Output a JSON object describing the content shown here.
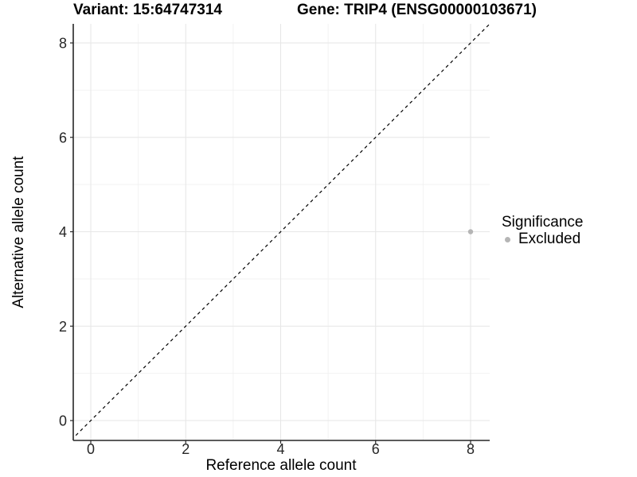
{
  "titles": {
    "variant": "Variant: 15:64747314",
    "gene": "Gene: TRIP4 (ENSG00000103671)"
  },
  "chart_data": {
    "type": "scatter",
    "title": "Variant: 15:64747314   Gene: TRIP4 (ENSG00000103671)",
    "xlabel": "Reference allele count",
    "ylabel": "Alternative allele count",
    "xlim": [
      -0.4,
      8.4
    ],
    "ylim": [
      -0.4,
      8.4
    ],
    "x_ticks": [
      0,
      2,
      4,
      6,
      8
    ],
    "y_ticks": [
      0,
      2,
      4,
      6,
      8
    ],
    "x_minor": [
      1,
      3,
      5,
      7
    ],
    "y_minor": [
      1,
      3,
      5,
      7
    ],
    "grid": true,
    "identity_line": {
      "equation": "y = x",
      "style": "dashed",
      "color": "#000000"
    },
    "series": [
      {
        "name": "Excluded",
        "color": "#b5b5b5",
        "points": [
          {
            "x": 8,
            "y": 4
          }
        ]
      }
    ],
    "legend": {
      "title": "Significance",
      "position": "right",
      "entries": [
        {
          "label": "Excluded",
          "color": "#b5b5b5"
        }
      ]
    },
    "colors": {
      "axis_line": "#262626",
      "tick_text": "#262626",
      "grid_major": "#e6e6e6",
      "grid_minor": "#f2f2f2"
    }
  }
}
